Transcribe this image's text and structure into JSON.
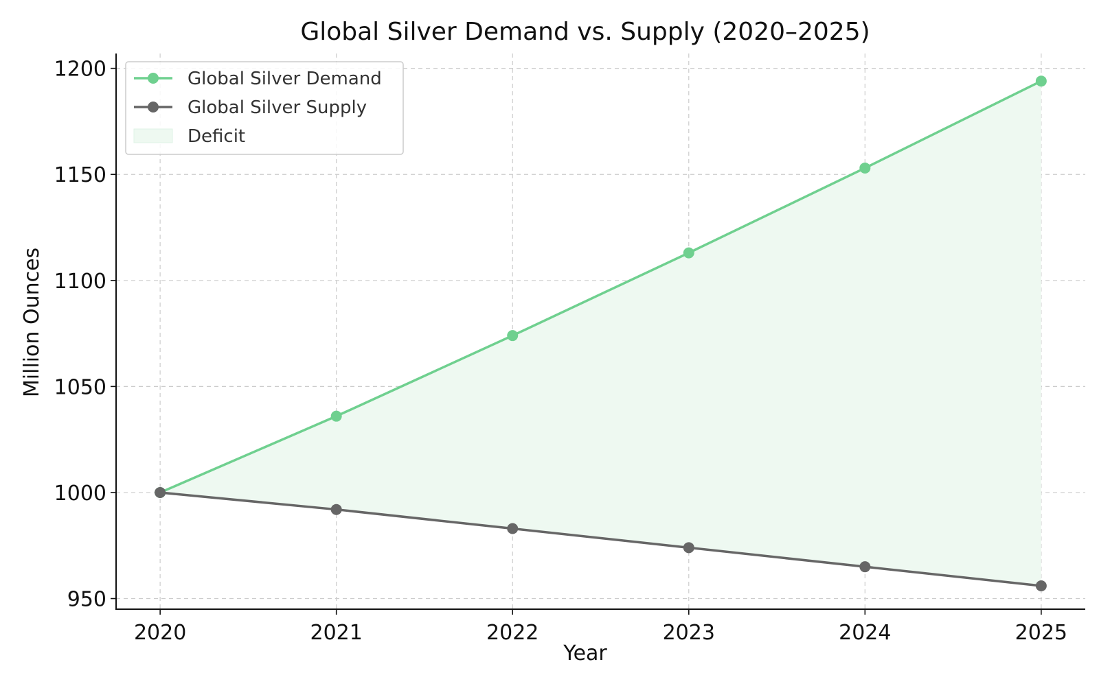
{
  "chart_data": {
    "type": "line",
    "title": "Global Silver Demand vs. Supply (2020–2025)",
    "xlabel": "Year",
    "ylabel": "Million Ounces",
    "x": [
      2020,
      2021,
      2022,
      2023,
      2024,
      2025
    ],
    "xticks": [
      "2020",
      "2021",
      "2022",
      "2023",
      "2024",
      "2025"
    ],
    "yticks": [
      950,
      1000,
      1050,
      1100,
      1150,
      1200
    ],
    "xlim": [
      2019.75,
      2025.25
    ],
    "ylim": [
      945,
      1207
    ],
    "grid": true,
    "legend_position": "top-left",
    "series": [
      {
        "name": "Global Silver Demand",
        "color": "#6fd08f",
        "values": [
          1000,
          1036,
          1074,
          1113,
          1153,
          1194
        ]
      },
      {
        "name": "Global Silver Supply",
        "color": "#666666",
        "values": [
          1000,
          992,
          983,
          974,
          965,
          956
        ]
      }
    ],
    "fill": {
      "name": "Deficit",
      "color": "#eef9f1",
      "between": [
        "Global Silver Demand",
        "Global Silver Supply"
      ]
    }
  }
}
